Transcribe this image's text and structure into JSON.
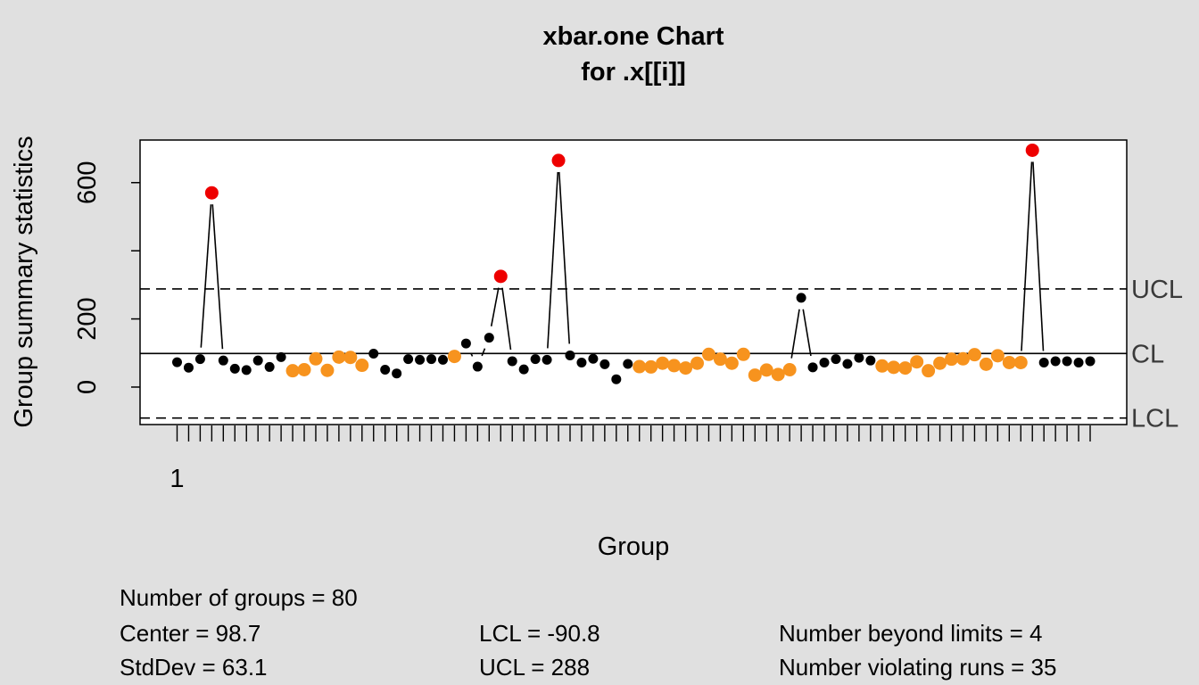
{
  "chart_data": {
    "type": "scatter",
    "title": "xbar.one Chart",
    "subtitle": "for .x[[i]]",
    "xlabel": "Group",
    "ylabel": "Group summary statistics",
    "x_tick_labels": [
      "1"
    ],
    "y_ticks": [
      0,
      200,
      600
    ],
    "ylim": [
      -110,
      725
    ],
    "xlim": [
      1,
      80
    ],
    "center_line": 98.7,
    "ucl": 288,
    "lcl": -90.8,
    "limit_labels": [
      "UCL",
      "CL",
      "LCL"
    ],
    "grid": false,
    "legend": "none",
    "colors": {
      "normal": "#000000",
      "violating_run": "#f7931e",
      "beyond_limits": "#ee0000"
    },
    "points": [
      {
        "x": 1,
        "y": 73,
        "status": "normal"
      },
      {
        "x": 2,
        "y": 57,
        "status": "normal"
      },
      {
        "x": 3,
        "y": 82,
        "status": "normal"
      },
      {
        "x": 4,
        "y": 570,
        "status": "beyond_limits"
      },
      {
        "x": 5,
        "y": 78,
        "status": "normal"
      },
      {
        "x": 6,
        "y": 54,
        "status": "normal"
      },
      {
        "x": 7,
        "y": 50,
        "status": "normal"
      },
      {
        "x": 8,
        "y": 78,
        "status": "normal"
      },
      {
        "x": 9,
        "y": 59,
        "status": "normal"
      },
      {
        "x": 10,
        "y": 88,
        "status": "normal"
      },
      {
        "x": 11,
        "y": 48,
        "status": "violating_run"
      },
      {
        "x": 12,
        "y": 51,
        "status": "violating_run"
      },
      {
        "x": 13,
        "y": 83,
        "status": "violating_run"
      },
      {
        "x": 14,
        "y": 49,
        "status": "violating_run"
      },
      {
        "x": 15,
        "y": 88,
        "status": "violating_run"
      },
      {
        "x": 16,
        "y": 87,
        "status": "violating_run"
      },
      {
        "x": 17,
        "y": 64,
        "status": "violating_run"
      },
      {
        "x": 18,
        "y": 98,
        "status": "normal"
      },
      {
        "x": 19,
        "y": 51,
        "status": "normal"
      },
      {
        "x": 20,
        "y": 40,
        "status": "normal"
      },
      {
        "x": 21,
        "y": 82,
        "status": "normal"
      },
      {
        "x": 22,
        "y": 80,
        "status": "normal"
      },
      {
        "x": 23,
        "y": 82,
        "status": "normal"
      },
      {
        "x": 24,
        "y": 80,
        "status": "normal"
      },
      {
        "x": 25,
        "y": 90,
        "status": "violating_run"
      },
      {
        "x": 26,
        "y": 128,
        "status": "normal"
      },
      {
        "x": 27,
        "y": 60,
        "status": "normal"
      },
      {
        "x": 28,
        "y": 145,
        "status": "normal"
      },
      {
        "x": 29,
        "y": 325,
        "status": "beyond_limits"
      },
      {
        "x": 30,
        "y": 76,
        "status": "normal"
      },
      {
        "x": 31,
        "y": 52,
        "status": "normal"
      },
      {
        "x": 32,
        "y": 82,
        "status": "normal"
      },
      {
        "x": 33,
        "y": 80,
        "status": "normal"
      },
      {
        "x": 34,
        "y": 665,
        "status": "beyond_limits"
      },
      {
        "x": 35,
        "y": 93,
        "status": "normal"
      },
      {
        "x": 36,
        "y": 72,
        "status": "normal"
      },
      {
        "x": 37,
        "y": 83,
        "status": "normal"
      },
      {
        "x": 38,
        "y": 67,
        "status": "normal"
      },
      {
        "x": 39,
        "y": 23,
        "status": "normal"
      },
      {
        "x": 40,
        "y": 68,
        "status": "normal"
      },
      {
        "x": 41,
        "y": 60,
        "status": "violating_run"
      },
      {
        "x": 42,
        "y": 59,
        "status": "violating_run"
      },
      {
        "x": 43,
        "y": 70,
        "status": "violating_run"
      },
      {
        "x": 44,
        "y": 63,
        "status": "violating_run"
      },
      {
        "x": 45,
        "y": 56,
        "status": "violating_run"
      },
      {
        "x": 46,
        "y": 70,
        "status": "violating_run"
      },
      {
        "x": 47,
        "y": 96,
        "status": "violating_run"
      },
      {
        "x": 48,
        "y": 82,
        "status": "violating_run"
      },
      {
        "x": 49,
        "y": 70,
        "status": "violating_run"
      },
      {
        "x": 50,
        "y": 96,
        "status": "violating_run"
      },
      {
        "x": 51,
        "y": 35,
        "status": "violating_run"
      },
      {
        "x": 52,
        "y": 50,
        "status": "violating_run"
      },
      {
        "x": 53,
        "y": 37,
        "status": "violating_run"
      },
      {
        "x": 54,
        "y": 51,
        "status": "violating_run"
      },
      {
        "x": 55,
        "y": 262,
        "status": "normal"
      },
      {
        "x": 56,
        "y": 58,
        "status": "normal"
      },
      {
        "x": 57,
        "y": 72,
        "status": "normal"
      },
      {
        "x": 58,
        "y": 82,
        "status": "normal"
      },
      {
        "x": 59,
        "y": 68,
        "status": "normal"
      },
      {
        "x": 60,
        "y": 86,
        "status": "normal"
      },
      {
        "x": 61,
        "y": 78,
        "status": "normal"
      },
      {
        "x": 62,
        "y": 62,
        "status": "violating_run"
      },
      {
        "x": 63,
        "y": 58,
        "status": "violating_run"
      },
      {
        "x": 64,
        "y": 56,
        "status": "violating_run"
      },
      {
        "x": 65,
        "y": 74,
        "status": "violating_run"
      },
      {
        "x": 66,
        "y": 48,
        "status": "violating_run"
      },
      {
        "x": 67,
        "y": 70,
        "status": "violating_run"
      },
      {
        "x": 68,
        "y": 82,
        "status": "violating_run"
      },
      {
        "x": 69,
        "y": 83,
        "status": "violating_run"
      },
      {
        "x": 70,
        "y": 95,
        "status": "violating_run"
      },
      {
        "x": 71,
        "y": 67,
        "status": "violating_run"
      },
      {
        "x": 72,
        "y": 92,
        "status": "violating_run"
      },
      {
        "x": 73,
        "y": 72,
        "status": "violating_run"
      },
      {
        "x": 74,
        "y": 72,
        "status": "violating_run"
      },
      {
        "x": 75,
        "y": 695,
        "status": "beyond_limits"
      },
      {
        "x": 76,
        "y": 72,
        "status": "normal"
      },
      {
        "x": 77,
        "y": 76,
        "status": "normal"
      },
      {
        "x": 78,
        "y": 76,
        "status": "normal"
      },
      {
        "x": 79,
        "y": 72,
        "status": "normal"
      },
      {
        "x": 80,
        "y": 76,
        "status": "normal"
      }
    ]
  },
  "stats": {
    "groups": "Number of groups = 80",
    "center": "Center = 98.7",
    "stddev": "StdDev = 63.1",
    "lcl": "LCL = -90.8",
    "ucl": "UCL = 288",
    "beyond": "Number beyond limits = 4",
    "violating": "Number violating runs = 35"
  }
}
